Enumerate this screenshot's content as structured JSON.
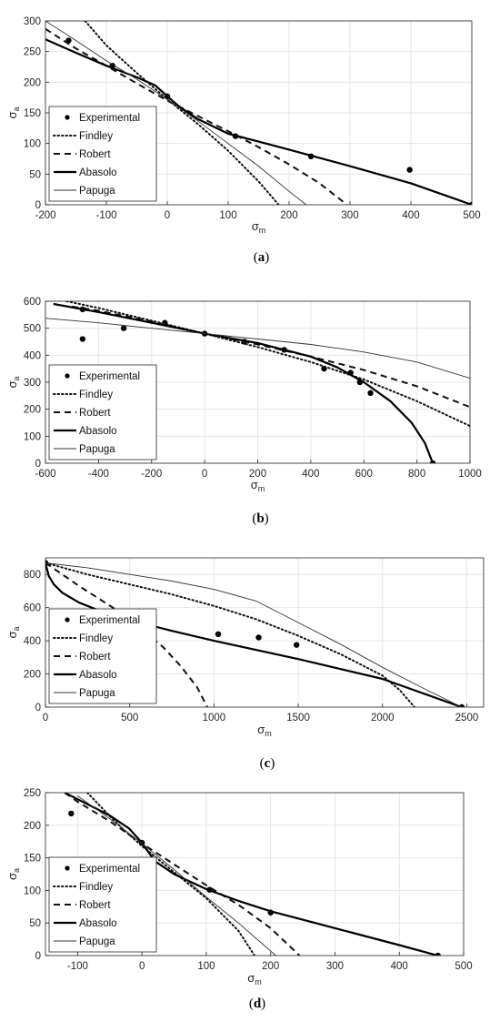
{
  "chart_data": [
    {
      "type": "line",
      "caption": "(a)",
      "xlabel": "σm",
      "ylabel": "σa",
      "xlim": [
        -200,
        500
      ],
      "ylim": [
        0,
        300
      ],
      "xticks": [
        -200,
        -100,
        0,
        100,
        200,
        300,
        400,
        500
      ],
      "yticks": [
        0,
        50,
        100,
        150,
        200,
        250,
        300
      ],
      "grid": true,
      "legend_position": "bottom-left",
      "series": [
        {
          "name": "Experimental",
          "style": "points",
          "x": [
            -162,
            -90,
            0,
            112,
            236,
            398,
            500
          ],
          "y": [
            268,
            227,
            177,
            112,
            79,
            57,
            0
          ]
        },
        {
          "name": "Findley",
          "style": "dotted",
          "x": [
            -135,
            -100,
            -50,
            0,
            50,
            100,
            150,
            183
          ],
          "y": [
            300,
            260,
            215,
            172,
            132,
            88,
            38,
            0
          ]
        },
        {
          "name": "Robert",
          "style": "dashed",
          "x": [
            -200,
            -150,
            -100,
            -50,
            0,
            50,
            100,
            150,
            200,
            250,
            295
          ],
          "y": [
            287,
            255,
            227,
            198,
            170,
            145,
            120,
            94,
            66,
            35,
            0
          ]
        },
        {
          "name": "Abasolo",
          "style": "thick",
          "x": [
            -200,
            -150,
            -100,
            -50,
            -20,
            0,
            20,
            50,
            100,
            150,
            200,
            300,
            400,
            500
          ],
          "y": [
            270,
            248,
            227,
            208,
            195,
            177,
            160,
            140,
            116,
            103,
            90,
            63,
            35,
            0
          ]
        },
        {
          "name": "Papuga",
          "style": "thin",
          "x": [
            -200,
            -150,
            -100,
            -50,
            0,
            50,
            100,
            150,
            200,
            228
          ],
          "y": [
            300,
            268,
            235,
            205,
            172,
            137,
            100,
            63,
            22,
            0
          ]
        }
      ]
    },
    {
      "type": "line",
      "caption": "(b)",
      "xlabel": "σm",
      "ylabel": "σa",
      "xlim": [
        -600,
        1000
      ],
      "ylim": [
        0,
        600
      ],
      "xticks": [
        -600,
        -400,
        -200,
        0,
        200,
        400,
        600,
        800,
        1000
      ],
      "yticks": [
        0,
        100,
        200,
        300,
        400,
        500,
        600
      ],
      "grid": true,
      "legend_position": "bottom-left",
      "series": [
        {
          "name": "Experimental",
          "style": "points",
          "x": [
            -460,
            -460,
            -305,
            -150,
            0,
            150,
            300,
            450,
            550,
            585,
            625,
            860
          ],
          "y": [
            570,
            460,
            500,
            520,
            480,
            450,
            420,
            350,
            335,
            300,
            260,
            0
          ]
        },
        {
          "name": "Findley",
          "style": "dotted",
          "x": [
            -520,
            -400,
            -200,
            0,
            200,
            400,
            600,
            800,
            1000
          ],
          "y": [
            600,
            575,
            528,
            480,
            430,
            375,
            310,
            230,
            138
          ]
        },
        {
          "name": "Robert",
          "style": "dashed",
          "x": [
            -500,
            -400,
            -200,
            0,
            200,
            400,
            600,
            800,
            1000
          ],
          "y": [
            580,
            565,
            525,
            480,
            440,
            395,
            345,
            285,
            208
          ]
        },
        {
          "name": "Abasolo",
          "style": "thick",
          "x": [
            -570,
            -400,
            -200,
            0,
            200,
            400,
            500,
            600,
            700,
            780,
            830,
            860
          ],
          "y": [
            590,
            560,
            520,
            480,
            445,
            395,
            355,
            300,
            230,
            150,
            75,
            0
          ]
        },
        {
          "name": "Papuga",
          "style": "thin",
          "x": [
            -600,
            -400,
            -200,
            0,
            200,
            400,
            600,
            800,
            1000
          ],
          "y": [
            537,
            520,
            500,
            480,
            460,
            440,
            412,
            375,
            315
          ]
        }
      ]
    },
    {
      "type": "line",
      "caption": "(c)",
      "xlabel": "σm",
      "ylabel": "σa",
      "xlim": [
        0,
        2600
      ],
      "ylim": [
        0,
        900
      ],
      "xticks": [
        0,
        500,
        1000,
        1500,
        2000,
        2500
      ],
      "yticks": [
        0,
        200,
        400,
        600,
        800
      ],
      "grid": true,
      "legend_position": "bottom-left",
      "series": [
        {
          "name": "Experimental",
          "style": "points",
          "x": [
            0,
            520,
            620,
            1025,
            1265,
            1490,
            2470
          ],
          "y": [
            870,
            525,
            505,
            440,
            420,
            375,
            0
          ]
        },
        {
          "name": "Findley",
          "style": "dotted",
          "x": [
            0,
            250,
            500,
            750,
            1000,
            1250,
            1500,
            1750,
            2000,
            2100,
            2190
          ],
          "y": [
            870,
            800,
            740,
            680,
            610,
            530,
            430,
            320,
            190,
            105,
            0
          ]
        },
        {
          "name": "Robert",
          "style": "dashed",
          "x": [
            0,
            100,
            200,
            300,
            400,
            500,
            600,
            700,
            800,
            900,
            960
          ],
          "y": [
            870,
            800,
            730,
            665,
            600,
            530,
            445,
            360,
            250,
            120,
            0
          ]
        },
        {
          "name": "Abasolo",
          "style": "thick",
          "x": [
            0,
            20,
            50,
            100,
            200,
            300,
            500,
            750,
            1000,
            1500,
            2000,
            2470
          ],
          "y": [
            870,
            790,
            740,
            690,
            630,
            590,
            525,
            460,
            400,
            290,
            170,
            0
          ]
        },
        {
          "name": "Papuga",
          "style": "thin",
          "x": [
            0,
            250,
            500,
            750,
            1000,
            1250,
            1500,
            1750,
            2000,
            2250,
            2470
          ],
          "y": [
            870,
            840,
            800,
            760,
            710,
            640,
            510,
            380,
            240,
            110,
            0
          ]
        }
      ]
    },
    {
      "type": "line",
      "caption": "(d)",
      "xlabel": "σm",
      "ylabel": "σa",
      "xlim": [
        -150,
        500
      ],
      "ylim": [
        0,
        250
      ],
      "xticks": [
        -100,
        0,
        100,
        200,
        300,
        400,
        500
      ],
      "yticks": [
        0,
        50,
        100,
        150,
        200,
        250
      ],
      "grid": true,
      "legend_position": "bottom-left",
      "series": [
        {
          "name": "Experimental",
          "style": "points",
          "x": [
            -110,
            0,
            105,
            200,
            460
          ],
          "y": [
            218,
            173,
            101,
            66,
            0
          ]
        },
        {
          "name": "Findley",
          "style": "dotted",
          "x": [
            -85,
            -50,
            -25,
            0,
            25,
            50,
            100,
            150,
            175
          ],
          "y": [
            250,
            214,
            190,
            168,
            148,
            128,
            88,
            38,
            0
          ]
        },
        {
          "name": "Robert",
          "style": "dashed",
          "x": [
            -120,
            -100,
            -50,
            0,
            50,
            100,
            150,
            200,
            245
          ],
          "y": [
            250,
            236,
            206,
            172,
            140,
            108,
            78,
            42,
            0
          ]
        },
        {
          "name": "Abasolo",
          "style": "thick",
          "x": [
            -120,
            -100,
            -50,
            -20,
            0,
            20,
            50,
            100,
            150,
            200,
            300,
            400,
            460
          ],
          "y": [
            250,
            240,
            215,
            195,
            173,
            145,
            125,
            102,
            84,
            68,
            42,
            16,
            0
          ]
        },
        {
          "name": "Papuga",
          "style": "thin",
          "x": [
            -100,
            -50,
            0,
            50,
            100,
            150,
            208
          ],
          "y": [
            245,
            210,
            172,
            132,
            90,
            50,
            0
          ]
        }
      ]
    }
  ]
}
